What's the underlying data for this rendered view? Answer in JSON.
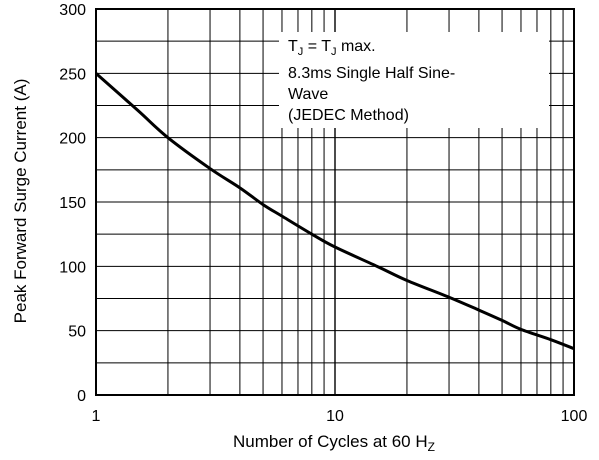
{
  "chart_data": {
    "type": "line",
    "xlabel": "Number of Cycles at 60 H",
    "xlabel_sub": "Z",
    "ylabel": "Peak Forward Surge Current (A)",
    "x_scale": "log",
    "xlim": [
      1,
      100
    ],
    "ylim": [
      0,
      300
    ],
    "x_ticks": [
      1,
      10,
      100
    ],
    "x_tick_labels": [
      "1",
      "10",
      "100"
    ],
    "y_ticks": [
      0,
      50,
      100,
      150,
      200,
      250,
      300
    ],
    "y_tick_labels": [
      "0",
      "50",
      "100",
      "150",
      "200",
      "250",
      "300"
    ],
    "y_minor_gridlines": [
      25,
      75,
      125,
      175,
      225,
      275
    ],
    "grid": true,
    "series": [
      {
        "x": [
          1,
          1.5,
          2,
          3,
          4,
          5,
          6,
          8,
          10,
          15,
          20,
          30,
          40,
          50,
          60,
          80,
          100
        ],
        "y": [
          250,
          221,
          200,
          176,
          161,
          148,
          139,
          125,
          115,
          100,
          89,
          76,
          66,
          58,
          51,
          43,
          36
        ],
        "color": "#000000"
      }
    ],
    "annotation": {
      "line1_main": "T",
      "line1_sub1": "J",
      "line1_eq": " = T",
      "line1_sub2": "J",
      "line1_tail": " max.",
      "line2": "8.3ms Single Half Sine-",
      "line3": "Wave",
      "line4": "(JEDEC Method)",
      "placement": "top-right"
    }
  }
}
